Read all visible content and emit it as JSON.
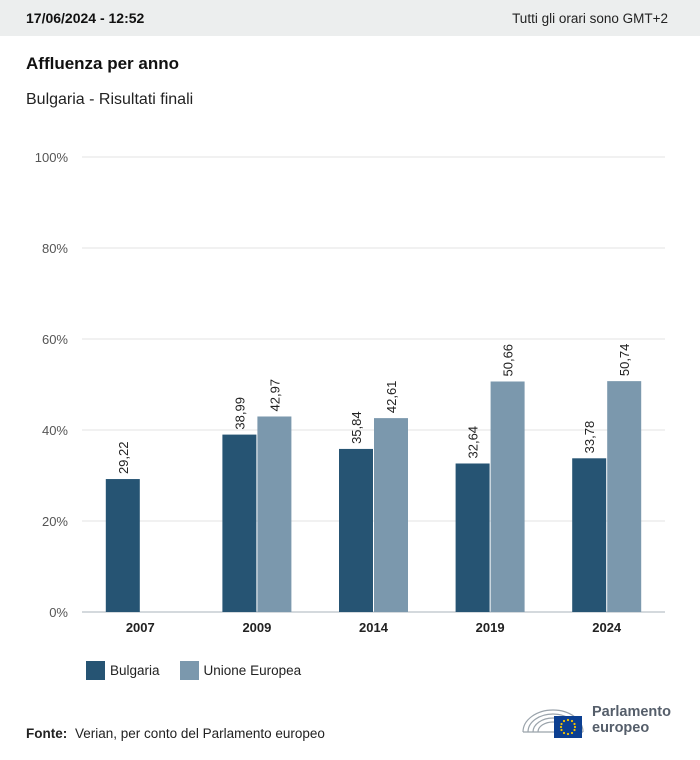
{
  "header": {
    "timestamp": "17/06/2024 - 12:52",
    "timezone_note": "Tutti gli orari sono GMT+2"
  },
  "title": "Affluenza per anno",
  "subtitle": "Bulgaria - Risultati finali",
  "colors": {
    "bulgaria": "#265473",
    "eu": "#7b98ad",
    "grid": "#e3e3e3",
    "axis": "#a9b3bb"
  },
  "chart_data": {
    "type": "bar",
    "categories": [
      "2007",
      "2009",
      "2014",
      "2019",
      "2024"
    ],
    "series": [
      {
        "name": "Bulgaria",
        "values": [
          29.22,
          38.99,
          35.84,
          32.64,
          33.78
        ],
        "labels": [
          "29,22",
          "38,99",
          "35,84",
          "32,64",
          "33,78"
        ]
      },
      {
        "name": "Unione Europea",
        "values": [
          null,
          42.97,
          42.61,
          50.66,
          50.74
        ],
        "labels": [
          "",
          "42,97",
          "42,61",
          "50,66",
          "50,74"
        ]
      }
    ],
    "ylim": [
      0,
      100
    ],
    "yticks": [
      0,
      20,
      40,
      60,
      80,
      100
    ],
    "ytick_labels": [
      "0%",
      "20%",
      "40%",
      "60%",
      "80%",
      "100%"
    ],
    "grid": true,
    "legend_position": "bottom-left"
  },
  "legend": [
    {
      "label": "Bulgaria"
    },
    {
      "label": "Unione Europea"
    }
  ],
  "source": {
    "label": "Fonte:",
    "text": "Verian, per conto del Parlamento europeo"
  },
  "logo": {
    "line1": "Parlamento",
    "line2": "europeo"
  }
}
